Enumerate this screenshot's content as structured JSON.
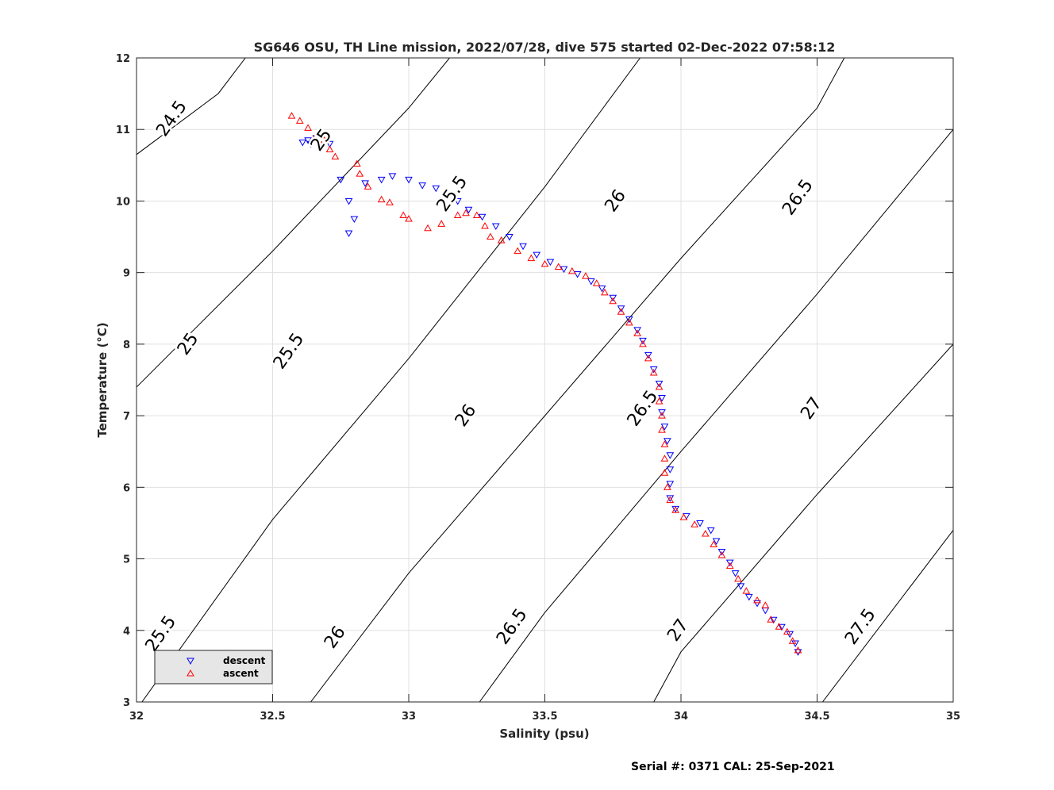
{
  "chart_data": {
    "type": "scatter",
    "title": "SG646 OSU, TH Line mission, 2022/07/28, dive 575 started 02-Dec-2022 07:58:12",
    "xlabel": "Salinity (psu)",
    "ylabel": "Temperature (°C)",
    "xlim": [
      32,
      35
    ],
    "ylim": [
      3,
      12
    ],
    "x_ticks": [
      32,
      32.5,
      33,
      33.5,
      34,
      34.5,
      35
    ],
    "x_tick_labels": [
      "32",
      "32.5",
      "33",
      "33.5",
      "34",
      "34.5",
      "35"
    ],
    "y_ticks": [
      3,
      4,
      5,
      6,
      7,
      8,
      9,
      10,
      11,
      12
    ],
    "y_tick_labels": [
      "3",
      "4",
      "5",
      "6",
      "7",
      "8",
      "9",
      "10",
      "11",
      "12"
    ],
    "grid": true,
    "legend_position": "bottom-left",
    "footer": "Serial #: 0371  CAL: 25-Sep-2021",
    "density_contours": [
      {
        "level": 24.5,
        "points": [
          [
            32.0,
            10.65
          ],
          [
            32.3,
            11.5
          ],
          [
            32.4,
            12.0
          ]
        ]
      },
      {
        "level": 25.0,
        "points": [
          [
            32.0,
            7.4
          ],
          [
            32.5,
            9.3
          ],
          [
            33.0,
            11.3
          ],
          [
            33.15,
            12.0
          ]
        ]
      },
      {
        "level": 25.5,
        "points": [
          [
            32.02,
            3.0
          ],
          [
            32.5,
            5.55
          ],
          [
            33.0,
            7.8
          ],
          [
            33.5,
            10.2
          ],
          [
            33.85,
            12.0
          ]
        ]
      },
      {
        "level": 26.0,
        "points": [
          [
            32.64,
            3.0
          ],
          [
            33.0,
            4.8
          ],
          [
            33.5,
            7.0
          ],
          [
            34.0,
            9.2
          ],
          [
            34.5,
            11.3
          ],
          [
            34.6,
            12.0
          ]
        ]
      },
      {
        "level": 26.5,
        "points": [
          [
            33.26,
            3.0
          ],
          [
            33.5,
            4.25
          ],
          [
            34.0,
            6.5
          ],
          [
            34.5,
            8.7
          ],
          [
            35.0,
            11.0
          ],
          [
            35.0,
            11.0
          ]
        ]
      },
      {
        "level": 27.0,
        "points": [
          [
            33.9,
            3.0
          ],
          [
            34.0,
            3.7
          ],
          [
            34.5,
            5.9
          ],
          [
            35.0,
            8.0
          ]
        ]
      },
      {
        "level": 27.5,
        "points": [
          [
            34.52,
            3.0
          ],
          [
            35.0,
            5.4
          ]
        ]
      }
    ],
    "contour_labels": [
      {
        "text": "24.5",
        "x": 32.13,
        "y": 11.15
      },
      {
        "text": "25",
        "x": 32.19,
        "y": 8.0
      },
      {
        "text": "25",
        "x": 32.68,
        "y": 10.85
      },
      {
        "text": "25.5",
        "x": 33.16,
        "y": 10.1
      },
      {
        "text": "25.5",
        "x": 32.09,
        "y": 3.95
      },
      {
        "text": "25.5",
        "x": 32.56,
        "y": 7.9
      },
      {
        "text": "26",
        "x": 33.76,
        "y": 10.0
      },
      {
        "text": "26",
        "x": 33.21,
        "y": 7.0
      },
      {
        "text": "26",
        "x": 32.73,
        "y": 3.9
      },
      {
        "text": "26.5",
        "x": 34.43,
        "y": 10.05
      },
      {
        "text": "26.5",
        "x": 33.86,
        "y": 7.1
      },
      {
        "text": "26.5",
        "x": 33.38,
        "y": 4.05
      },
      {
        "text": "27",
        "x": 34.48,
        "y": 7.1
      },
      {
        "text": "27",
        "x": 33.99,
        "y": 4.0
      },
      {
        "text": "27.5",
        "x": 34.66,
        "y": 4.05
      }
    ],
    "series": [
      {
        "name": "descent",
        "color": "#0000ff",
        "marker": "triangle-down",
        "points": [
          [
            32.61,
            10.82
          ],
          [
            32.63,
            10.85
          ],
          [
            32.66,
            10.88
          ],
          [
            32.64,
            10.8
          ],
          [
            32.68,
            10.78
          ],
          [
            32.71,
            10.8
          ],
          [
            32.75,
            10.3
          ],
          [
            32.78,
            10.0
          ],
          [
            32.8,
            9.75
          ],
          [
            32.78,
            9.55
          ],
          [
            32.84,
            10.25
          ],
          [
            32.9,
            10.3
          ],
          [
            32.94,
            10.35
          ],
          [
            33.0,
            10.3
          ],
          [
            33.05,
            10.22
          ],
          [
            33.1,
            10.18
          ],
          [
            33.15,
            10.1
          ],
          [
            33.18,
            10.0
          ],
          [
            33.22,
            9.88
          ],
          [
            33.27,
            9.78
          ],
          [
            33.32,
            9.65
          ],
          [
            33.37,
            9.5
          ],
          [
            33.42,
            9.37
          ],
          [
            33.47,
            9.25
          ],
          [
            33.52,
            9.15
          ],
          [
            33.57,
            9.05
          ],
          [
            33.62,
            8.98
          ],
          [
            33.67,
            8.88
          ],
          [
            33.71,
            8.78
          ],
          [
            33.75,
            8.65
          ],
          [
            33.78,
            8.5
          ],
          [
            33.81,
            8.35
          ],
          [
            33.84,
            8.2
          ],
          [
            33.86,
            8.05
          ],
          [
            33.88,
            7.85
          ],
          [
            33.9,
            7.65
          ],
          [
            33.92,
            7.45
          ],
          [
            33.93,
            7.25
          ],
          [
            33.93,
            7.05
          ],
          [
            33.94,
            6.85
          ],
          [
            33.95,
            6.65
          ],
          [
            33.96,
            6.45
          ],
          [
            33.96,
            6.25
          ],
          [
            33.96,
            6.05
          ],
          [
            33.96,
            5.85
          ],
          [
            33.98,
            5.7
          ],
          [
            34.02,
            5.6
          ],
          [
            34.07,
            5.5
          ],
          [
            34.11,
            5.4
          ],
          [
            34.13,
            5.25
          ],
          [
            34.15,
            5.1
          ],
          [
            34.18,
            4.95
          ],
          [
            34.2,
            4.8
          ],
          [
            34.22,
            4.62
          ],
          [
            34.25,
            4.47
          ],
          [
            34.28,
            4.38
          ],
          [
            34.31,
            4.28
          ],
          [
            34.34,
            4.15
          ],
          [
            34.37,
            4.05
          ],
          [
            34.4,
            3.95
          ],
          [
            34.42,
            3.82
          ],
          [
            34.43,
            3.7
          ]
        ]
      },
      {
        "name": "ascent",
        "color": "#ff0000",
        "marker": "triangle-up",
        "points": [
          [
            32.57,
            11.19
          ],
          [
            32.6,
            11.12
          ],
          [
            32.63,
            11.02
          ],
          [
            32.66,
            10.92
          ],
          [
            32.69,
            10.85
          ],
          [
            32.71,
            10.72
          ],
          [
            32.73,
            10.62
          ],
          [
            32.81,
            10.52
          ],
          [
            32.82,
            10.38
          ],
          [
            32.85,
            10.2
          ],
          [
            32.9,
            10.02
          ],
          [
            32.93,
            9.98
          ],
          [
            32.98,
            9.8
          ],
          [
            33.0,
            9.75
          ],
          [
            33.07,
            9.62
          ],
          [
            33.12,
            9.68
          ],
          [
            33.18,
            9.8
          ],
          [
            33.21,
            9.83
          ],
          [
            33.25,
            9.8
          ],
          [
            33.28,
            9.65
          ],
          [
            33.3,
            9.5
          ],
          [
            33.34,
            9.45
          ],
          [
            33.4,
            9.3
          ],
          [
            33.45,
            9.2
          ],
          [
            33.5,
            9.12
          ],
          [
            33.55,
            9.08
          ],
          [
            33.6,
            9.02
          ],
          [
            33.65,
            8.95
          ],
          [
            33.69,
            8.85
          ],
          [
            33.72,
            8.72
          ],
          [
            33.75,
            8.6
          ],
          [
            33.78,
            8.45
          ],
          [
            33.81,
            8.3
          ],
          [
            33.84,
            8.15
          ],
          [
            33.86,
            8.0
          ],
          [
            33.88,
            7.8
          ],
          [
            33.9,
            7.6
          ],
          [
            33.92,
            7.4
          ],
          [
            33.92,
            7.2
          ],
          [
            33.93,
            7.0
          ],
          [
            33.93,
            6.8
          ],
          [
            33.94,
            6.6
          ],
          [
            33.94,
            6.4
          ],
          [
            33.94,
            6.2
          ],
          [
            33.95,
            6.0
          ],
          [
            33.96,
            5.82
          ],
          [
            33.98,
            5.68
          ],
          [
            34.01,
            5.58
          ],
          [
            34.05,
            5.48
          ],
          [
            34.09,
            5.35
          ],
          [
            34.12,
            5.2
          ],
          [
            34.15,
            5.05
          ],
          [
            34.18,
            4.9
          ],
          [
            34.21,
            4.72
          ],
          [
            34.24,
            4.55
          ],
          [
            34.28,
            4.42
          ],
          [
            34.31,
            4.35
          ],
          [
            34.33,
            4.15
          ],
          [
            34.36,
            4.05
          ],
          [
            34.39,
            3.98
          ],
          [
            34.41,
            3.85
          ],
          [
            34.43,
            3.72
          ]
        ]
      }
    ]
  }
}
